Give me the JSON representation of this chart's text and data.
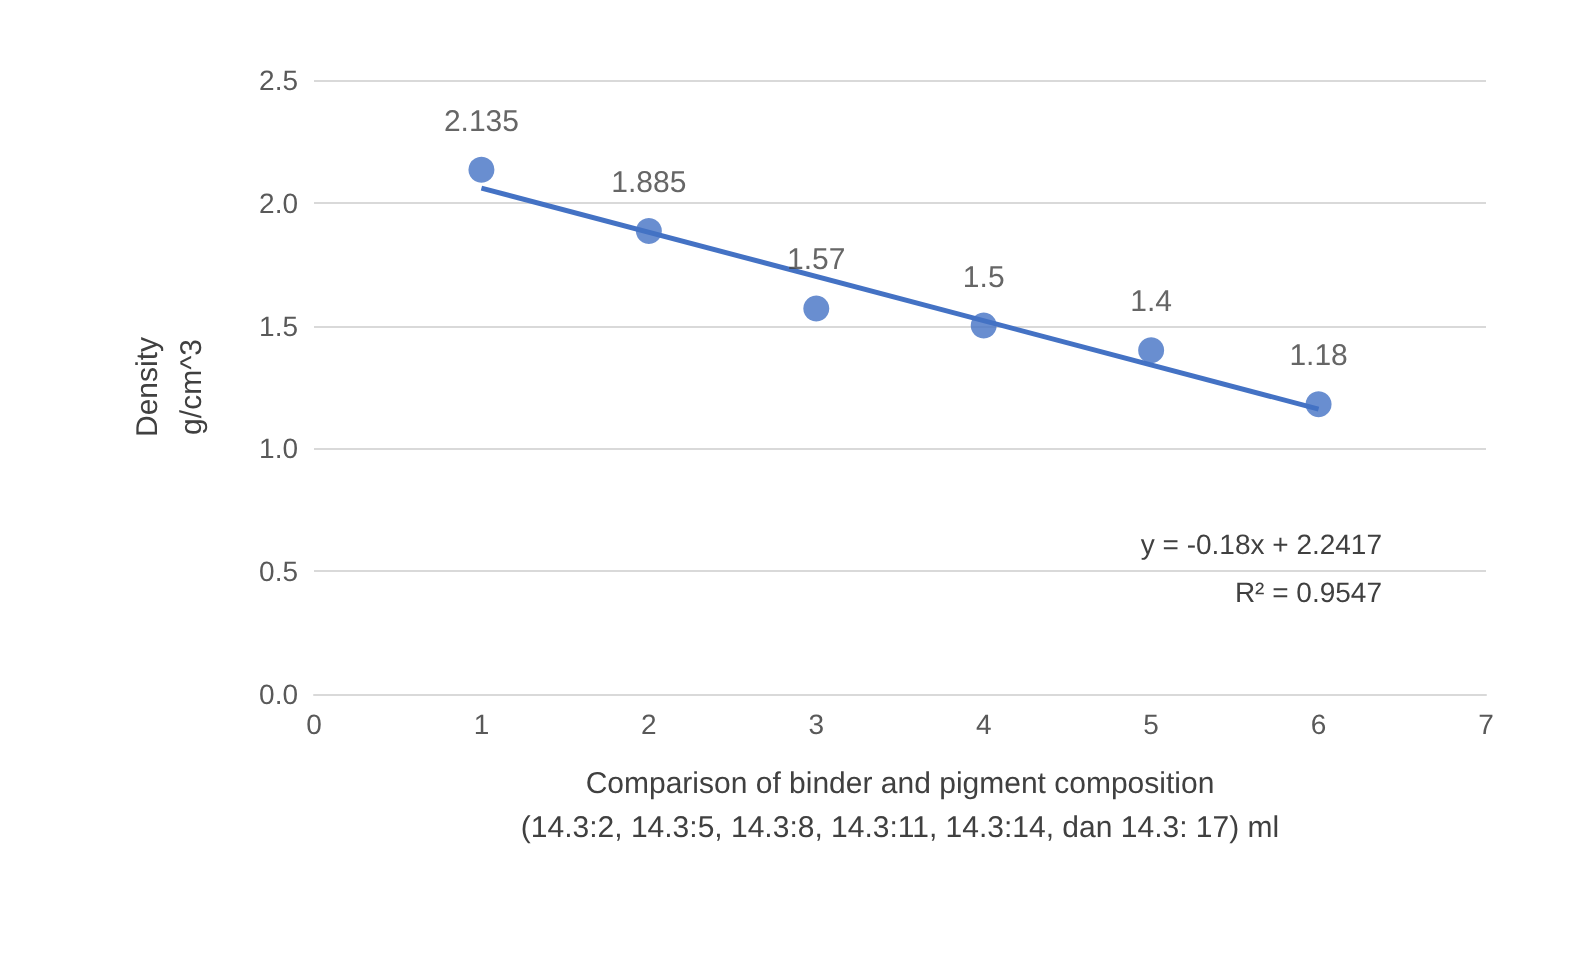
{
  "chart_data": {
    "type": "scatter",
    "xlabel": "Comparison of binder and pigment composition\n(14.3:2, 14.3:5, 14.3:8, 14.3:11, 14.3:14, dan 14.3: 17) ml",
    "ylabel": "Density\ng/cm^3",
    "xlim": [
      0,
      7
    ],
    "xticks": [
      0,
      1,
      2,
      3,
      4,
      5,
      6,
      7
    ],
    "ylim": [
      0,
      2.5
    ],
    "yticks": [
      {
        "value": 0,
        "label": "0.0"
      },
      {
        "value": 0.5,
        "label": "0.5"
      },
      {
        "value": 1,
        "label": "1.0"
      },
      {
        "value": 1.5,
        "label": "1.5"
      },
      {
        "value": 2,
        "label": "2.0"
      },
      {
        "value": 2.5,
        "label": "2.5"
      }
    ],
    "grid": "y",
    "marker": "circle",
    "series": [
      {
        "color": "#4472c4",
        "x": [
          1,
          2,
          3,
          4,
          5,
          6
        ],
        "values": [
          2.135,
          1.885,
          1.57,
          1.5,
          1.4,
          1.18
        ],
        "value_labels": [
          "2.135",
          "1.885",
          "1.57",
          "1.5",
          "1.4",
          "1.18"
        ]
      },
      {
        "type": "line",
        "color": "#4472c4",
        "x": [
          1,
          6
        ],
        "values": [
          2.06,
          1.16
        ],
        "marker": "none"
      }
    ],
    "annotations": [
      "y = -0.18x + 2.2417",
      "R² = 0.9547"
    ]
  }
}
